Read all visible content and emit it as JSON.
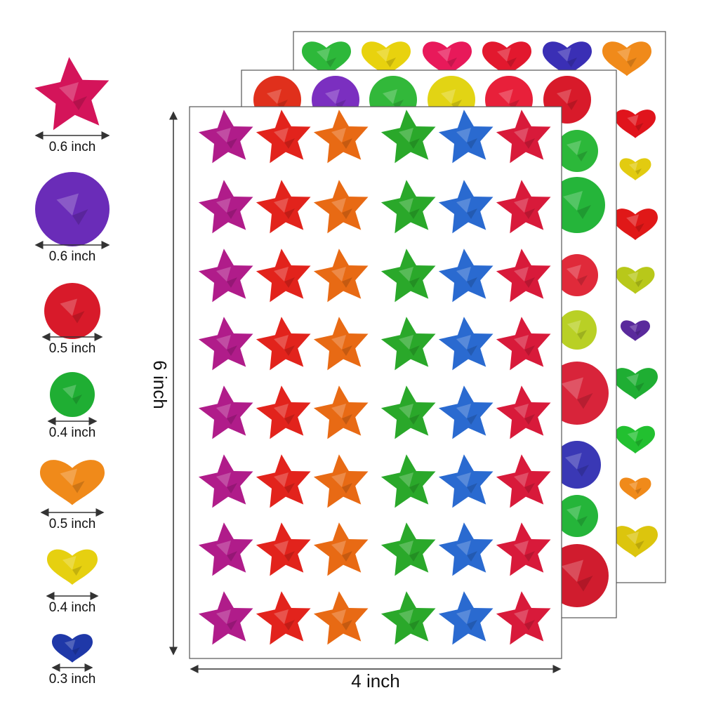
{
  "size_labels": [
    "0.6 inch",
    "0.6 inch",
    "0.5 inch",
    "0.4 inch",
    "0.5 inch",
    "0.4 inch",
    "0.3 inch"
  ],
  "height_label": "6 inch",
  "width_label": "4 inch"
}
